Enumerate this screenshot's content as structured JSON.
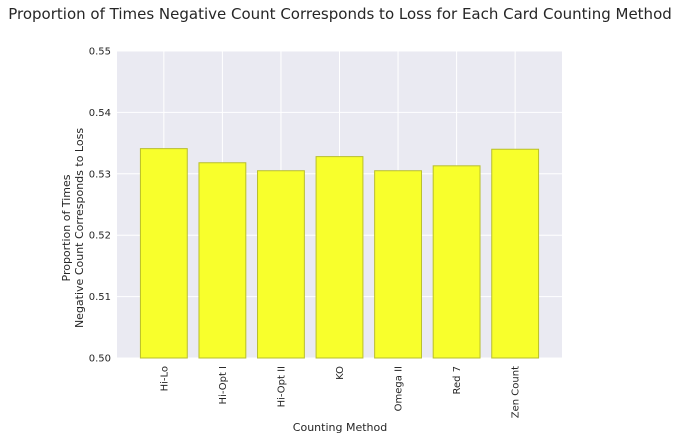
{
  "chart_data": {
    "type": "bar",
    "title": "Proportion of Times Negative Count Corresponds to Loss for Each Card Counting Method",
    "xlabel": "Counting Method",
    "ylabel": [
      "Proportion of Times",
      "Negative Count Corresponds to Loss"
    ],
    "categories": [
      "Hi-Lo",
      "Hi-Opt I",
      "Hi-Opt II",
      "KO",
      "Omega II",
      "Red 7",
      "Zen Count"
    ],
    "values": [
      0.5341,
      0.5318,
      0.5305,
      0.5328,
      0.5305,
      0.5313,
      0.534
    ],
    "ylim": [
      0.5,
      0.55
    ],
    "yticks": [
      "0.50",
      "0.51",
      "0.52",
      "0.53",
      "0.54",
      "0.55"
    ],
    "grid": true,
    "colors": {
      "bar_fill": "#f8ff2c",
      "bar_edge": "#b9bf2c",
      "plot_background": "#eaeaf2",
      "grid": "#ffffff"
    }
  }
}
